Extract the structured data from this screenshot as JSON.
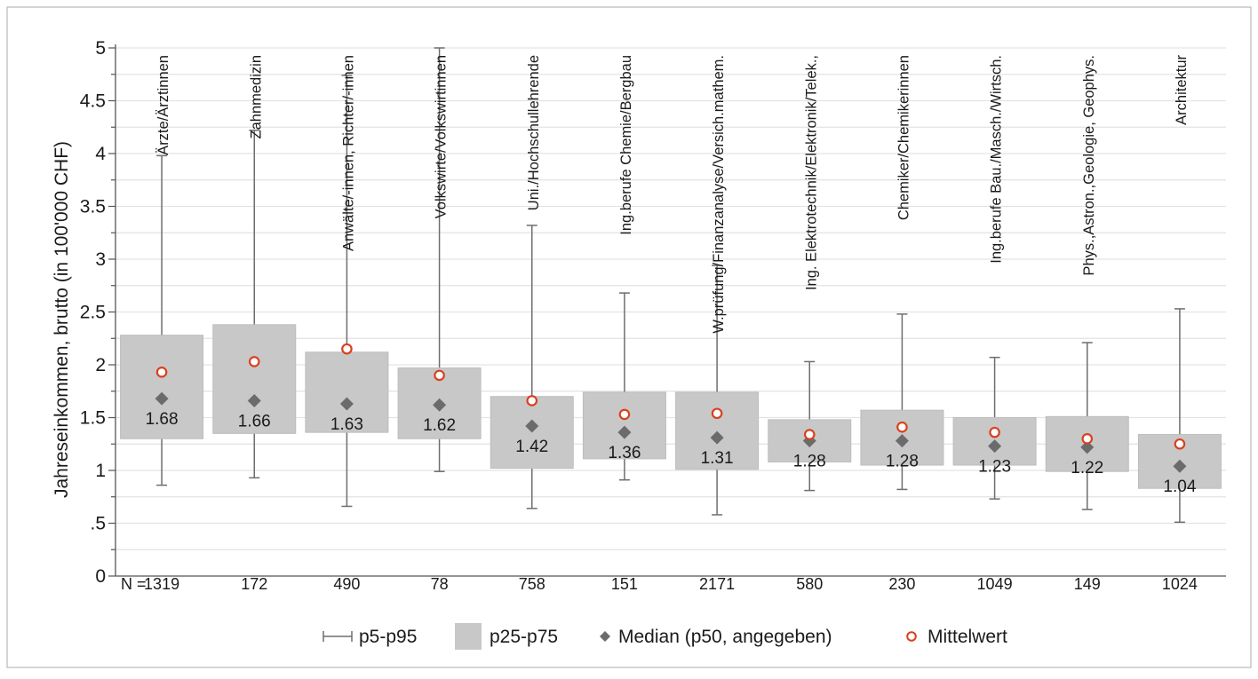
{
  "chart_data": {
    "type": "boxplot",
    "ylabel": "Jahreseinkommen, brutto (in 100'000 CHF)",
    "ylim": [
      0,
      5
    ],
    "yticks": [
      0,
      0.5,
      1,
      1.5,
      2,
      2.5,
      3,
      3.5,
      4,
      4.5,
      5
    ],
    "ytick_labels": [
      "0",
      ".5",
      "1",
      "1.5",
      "2",
      "2.5",
      "3",
      "3.5",
      "4",
      "4.5",
      "5"
    ],
    "grid": true,
    "legend_position": "bottom",
    "n_prefix": "N =",
    "categories": [
      "Ärzte/Ärztinnen",
      "Zahnmedizin",
      "Anwälte/-innen, Richter/-innen",
      "Volkswirte/Volkswirtinnen",
      "Uni./Hochschullehrende",
      "Ing.berufe Chemie/Bergbau",
      "W.prüfung/Finanzanalyse/Versich.mathem.",
      "Ing. Elektrotechnik/Elektronik/Telek.,",
      "Chemiker/Chemikerinnen",
      "Ing.berufe Bau./Masch./Wirtsch.",
      "Phys.,Astron.,Geologie, Geophys.",
      "Architektur"
    ],
    "n": [
      "1319",
      "172",
      "490",
      "78",
      "758",
      "151",
      "2171",
      "580",
      "230",
      "1049",
      "149",
      "1024"
    ],
    "p5": [
      0.86,
      0.93,
      0.66,
      0.99,
      0.64,
      0.91,
      0.58,
      0.81,
      0.82,
      0.73,
      0.63,
      0.51
    ],
    "p25": [
      1.3,
      1.35,
      1.36,
      1.3,
      1.02,
      1.11,
      1.01,
      1.08,
      1.05,
      1.05,
      0.99,
      0.83
    ],
    "median": [
      1.68,
      1.66,
      1.63,
      1.62,
      1.42,
      1.36,
      1.31,
      1.28,
      1.28,
      1.23,
      1.22,
      1.04
    ],
    "median_labels": [
      "1.68",
      "1.66",
      "1.63",
      "1.62",
      "1.42",
      "1.36",
      "1.31",
      "1.28",
      "1.28",
      "1.23",
      "1.22",
      "1.04"
    ],
    "p75": [
      2.28,
      2.38,
      2.12,
      1.97,
      1.7,
      1.74,
      1.74,
      1.48,
      1.57,
      1.5,
      1.51,
      1.34
    ],
    "p95": [
      3.98,
      4.22,
      4.74,
      5.0,
      3.32,
      2.68,
      2.94,
      2.03,
      2.48,
      2.07,
      2.21,
      2.53
    ],
    "mean": [
      1.93,
      2.03,
      2.15,
      1.9,
      1.66,
      1.53,
      1.54,
      1.34,
      1.41,
      1.36,
      1.3,
      1.25
    ],
    "legend": [
      {
        "key": "whisker",
        "label": "p5-p95"
      },
      {
        "key": "box",
        "label": "p25-p75"
      },
      {
        "key": "median",
        "label": "Median (p50, angegeben)"
      },
      {
        "key": "mean",
        "label": "Mittelwert"
      }
    ],
    "colors": {
      "box": "#c8c8c8",
      "whisker": "#6e6e6e",
      "median": "#6b6b6b",
      "mean_edge": "#d9411e",
      "grid": "#e3e3e3",
      "axis": "#555555",
      "text": "#1a1a1a",
      "frame": "#b9b9b9"
    }
  }
}
